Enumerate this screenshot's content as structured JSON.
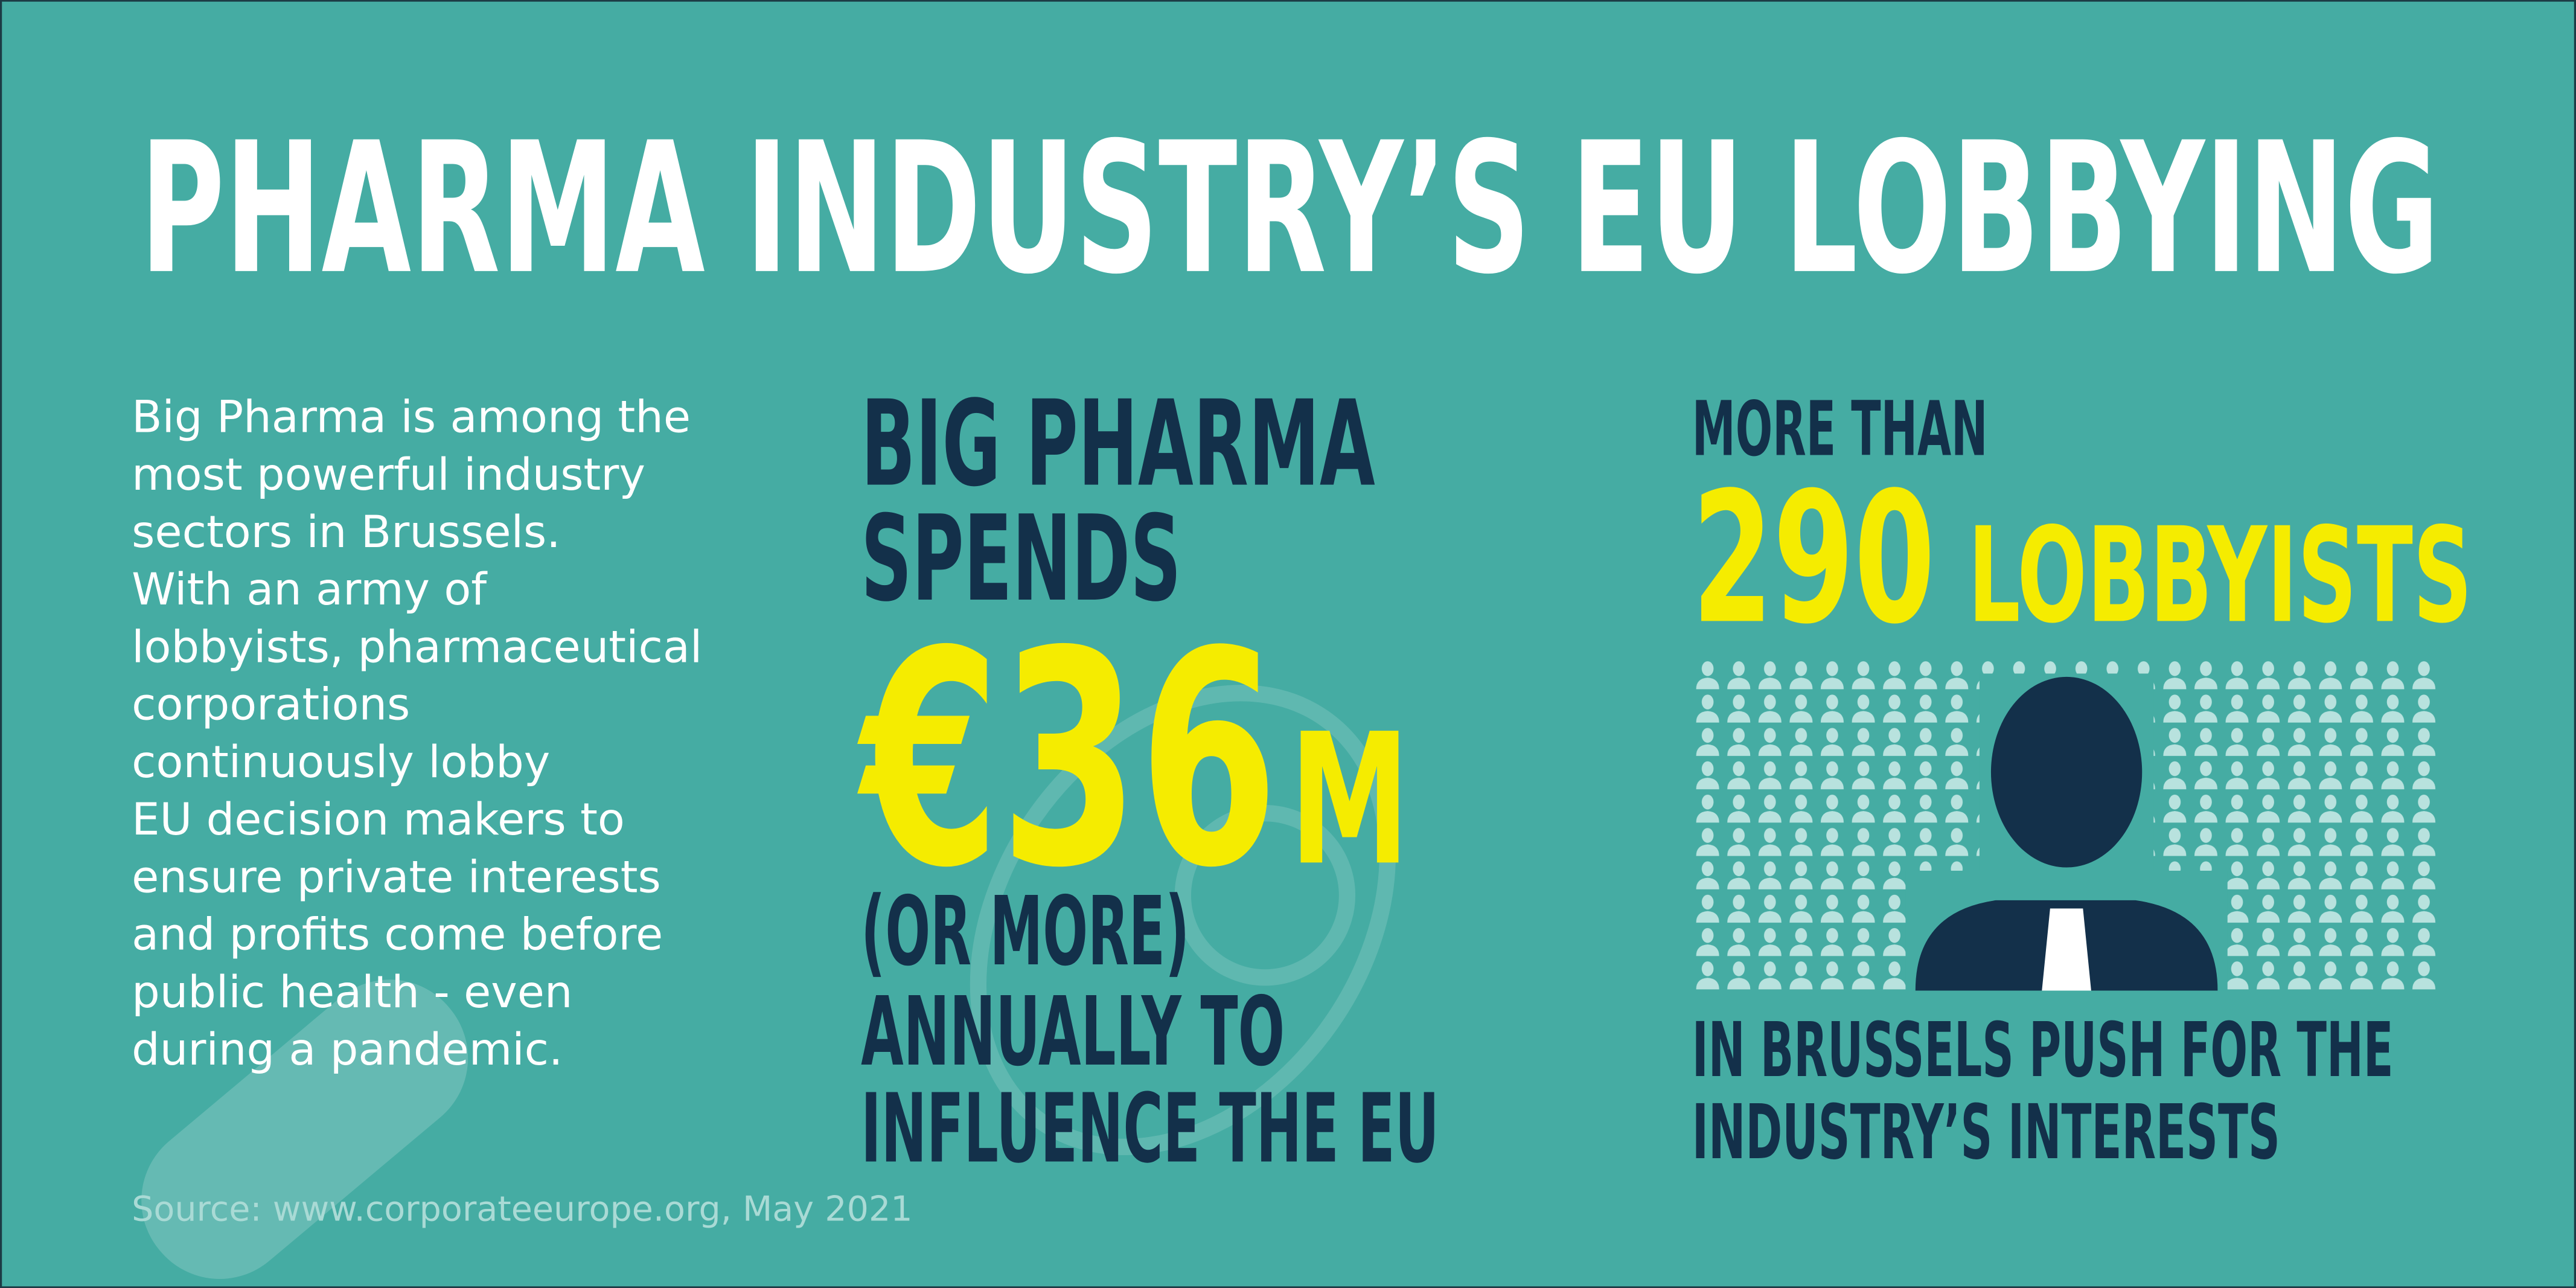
{
  "title": "PHARMA INDUSTRY’S EU LOBBYING",
  "intro": {
    "lines": [
      "Big Pharma is among the",
      "most powerful industry",
      "sectors in Brussels.",
      "With an army of",
      "lobbyists, pharmaceutical",
      "corporations",
      "continuously lobby",
      "EU decision makers to",
      "ensure private interests",
      "and profits come before",
      "public health - even",
      "during a pandemic."
    ]
  },
  "spending": {
    "line1": "BIG PHARMA",
    "line2": "SPENDS",
    "amount": "€36",
    "unit": "M",
    "note": "(OR MORE)",
    "line3": "ANNUALLY TO",
    "line4": "INFLUENCE THE EU"
  },
  "lobbyists": {
    "prefix": "MORE THAN",
    "count": "290",
    "label": "LOBBYISTS",
    "line1": "IN BRUSSELS PUSH FOR THE",
    "line2": "INDUSTRY’S INTERESTS"
  },
  "source": "Source: www.corporateeurope.org, May 2021"
}
